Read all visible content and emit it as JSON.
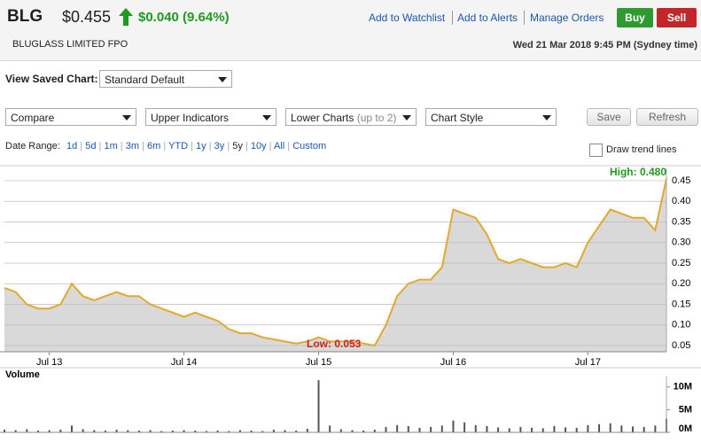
{
  "header": {
    "ticker": "BLG",
    "price": "$0.455",
    "change": "$0.040 (9.64%)",
    "links": [
      "Add to Watchlist",
      "Add to Alerts",
      "Manage Orders"
    ],
    "buy": "Buy",
    "sell": "Sell",
    "company": "BLUGLASS LIMITED FPO",
    "timestamp": "Wed 21 Mar 2018 9:45 PM (Sydney time)"
  },
  "toolbar": {
    "saved_label": "View Saved Chart:",
    "saved_value": "Standard Default",
    "selects": [
      "Compare",
      "Upper Indicators",
      "Lower Charts",
      "Chart Style"
    ],
    "lower_note": "(up to 2)",
    "buttons": [
      "Save",
      "Refresh"
    ],
    "range_label": "Date Range:",
    "ranges": [
      "1d",
      "5d",
      "1m",
      "3m",
      "6m",
      "YTD",
      "1y",
      "3y",
      "5y",
      "10y",
      "All",
      "Custom"
    ],
    "trend": "Draw trend lines"
  },
  "chart_data": [
    {
      "type": "line",
      "color": "#e6a82a",
      "fill": "#d9d9d9",
      "grid": true,
      "categories": [
        null,
        null,
        null,
        null,
        "Jul 13",
        null,
        null,
        null,
        null,
        null,
        null,
        null,
        null,
        null,
        null,
        null,
        "Jul 14",
        null,
        null,
        null,
        null,
        null,
        null,
        null,
        null,
        null,
        null,
        null,
        "Jul 15",
        null,
        null,
        null,
        null,
        null,
        null,
        null,
        null,
        null,
        null,
        null,
        "Jul 16",
        null,
        null,
        null,
        null,
        null,
        null,
        null,
        null,
        null,
        null,
        null,
        "Jul 17",
        null,
        null,
        null,
        null,
        null,
        null,
        null
      ],
      "values": [
        0.19,
        0.18,
        0.15,
        0.14,
        0.14,
        0.15,
        0.2,
        0.17,
        0.16,
        0.17,
        0.18,
        0.17,
        0.17,
        0.15,
        0.14,
        0.13,
        0.12,
        0.13,
        0.12,
        0.11,
        0.09,
        0.08,
        0.08,
        0.07,
        0.065,
        0.06,
        0.055,
        0.06,
        0.07,
        0.06,
        0.06,
        0.06,
        0.055,
        0.05,
        0.1,
        0.17,
        0.2,
        0.21,
        0.21,
        0.24,
        0.38,
        0.37,
        0.36,
        0.32,
        0.26,
        0.25,
        0.26,
        0.25,
        0.24,
        0.24,
        0.25,
        0.24,
        0.3,
        0.34,
        0.38,
        0.37,
        0.36,
        0.36,
        0.33,
        0.455
      ],
      "ylim": [
        0.035,
        0.48
      ],
      "yticks": [
        0.05,
        {
          "value": 0.1,
          "label": "0.10"
        },
        0.15,
        {
          "value": 0.2,
          "label": "0.20"
        },
        0.25,
        {
          "value": 0.3,
          "label": "0.30"
        },
        0.35,
        {
          "value": 0.4,
          "label": "0.40"
        },
        0.45
      ],
      "annotations": {
        "high": "High: 0.480",
        "low": "Low: 0.053"
      }
    },
    {
      "type": "bar",
      "title": "Volume",
      "color": "#555555",
      "values": [
        600000,
        500000,
        700000,
        400000,
        500000,
        600000,
        1500000,
        700000,
        500000,
        400000,
        600000,
        500000,
        400000,
        500000,
        300000,
        400000,
        500000,
        400000,
        300000,
        400000,
        300000,
        500000,
        400000,
        300000,
        600000,
        500000,
        400000,
        800000,
        11500000,
        1500000,
        700000,
        500000,
        400000,
        600000,
        1200000,
        1600000,
        1400000,
        1000000,
        1200000,
        1500000,
        2600000,
        2200000,
        1600000,
        1400000,
        1100000,
        900000,
        1200000,
        1000000,
        900000,
        1400000,
        1100000,
        1000000,
        1600000,
        1800000,
        2000000,
        1500000,
        1300000,
        1200000,
        1500000,
        3000000
      ],
      "ylim": [
        0,
        12300000
      ],
      "yticks": [
        {
          "value": 0,
          "label": "0M"
        },
        {
          "value": 5000000,
          "label": "5M"
        },
        {
          "value": 10000000,
          "label": "10M"
        }
      ]
    }
  ]
}
